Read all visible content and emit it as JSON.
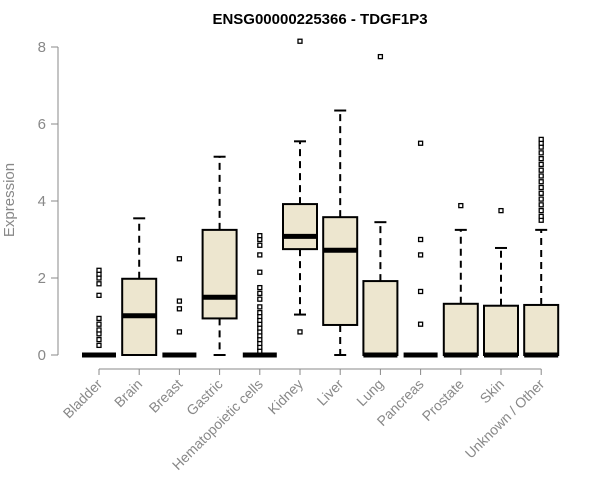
{
  "chart_data": {
    "type": "boxplot",
    "title": "ENSG00000225366 - TDGF1P3",
    "ylabel": "Expression",
    "xlabel": "",
    "ylim": [
      0,
      8
    ],
    "yticks": [
      0,
      2,
      4,
      6,
      8
    ],
    "box_fill": "#ede6cf",
    "categories": [
      "Bladder",
      "Brain",
      "Breast",
      "Gastric",
      "Hematopoietic cells",
      "Kidney",
      "Liver",
      "Lung",
      "Pancreas",
      "Prostate",
      "Skin",
      "Unknown / Other"
    ],
    "boxes": [
      {
        "q1": 0,
        "median": 0,
        "q3": 0,
        "whisker_low": 0,
        "whisker_high": 0,
        "outliers": [
          0.25,
          0.4,
          0.55,
          0.65,
          0.8,
          0.95,
          1.55,
          1.85,
          2.0,
          2.1,
          2.2
        ]
      },
      {
        "q1": 0,
        "median": 1.02,
        "q3": 1.98,
        "whisker_low": 0,
        "whisker_high": 3.55,
        "outliers": []
      },
      {
        "q1": 0,
        "median": 0,
        "q3": 0,
        "whisker_low": 0,
        "whisker_high": 0,
        "outliers": [
          0.6,
          1.2,
          1.4,
          2.5
        ]
      },
      {
        "q1": 0.95,
        "median": 1.5,
        "q3": 3.25,
        "whisker_low": 0,
        "whisker_high": 5.15,
        "outliers": []
      },
      {
        "q1": 0,
        "median": 0,
        "q3": 0,
        "whisker_low": 0,
        "whisker_high": 0,
        "outliers": [
          0.1,
          0.2,
          0.3,
          0.4,
          0.5,
          0.6,
          0.7,
          0.8,
          0.9,
          1.0,
          1.1,
          1.25,
          1.45,
          1.6,
          1.75,
          2.15,
          2.6,
          2.85,
          3.0,
          3.1
        ]
      },
      {
        "q1": 2.75,
        "median": 3.08,
        "q3": 3.92,
        "whisker_low": 1.05,
        "whisker_high": 5.55,
        "outliers": [
          0.6,
          8.15
        ]
      },
      {
        "q1": 0.78,
        "median": 2.72,
        "q3": 3.58,
        "whisker_low": 0,
        "whisker_high": 6.35,
        "outliers": []
      },
      {
        "q1": 0,
        "median": 0,
        "q3": 1.92,
        "whisker_low": 0,
        "whisker_high": 3.45,
        "outliers": [
          7.75
        ]
      },
      {
        "q1": 0,
        "median": 0,
        "q3": 0,
        "whisker_low": 0,
        "whisker_high": 0,
        "outliers": [
          0.8,
          1.65,
          2.6,
          3.0,
          5.5
        ]
      },
      {
        "q1": 0,
        "median": 0,
        "q3": 1.33,
        "whisker_low": 0,
        "whisker_high": 3.25,
        "outliers": [
          3.88
        ]
      },
      {
        "q1": 0,
        "median": 0,
        "q3": 1.28,
        "whisker_low": 0,
        "whisker_high": 2.78,
        "outliers": [
          3.75
        ]
      },
      {
        "q1": 0,
        "median": 0,
        "q3": 1.3,
        "whisker_low": 0,
        "whisker_high": 3.25,
        "outliers": [
          3.5,
          3.6,
          3.75,
          3.9,
          4.05,
          4.2,
          4.35,
          4.5,
          4.65,
          4.8,
          4.95,
          5.1,
          5.25,
          5.4,
          5.5,
          5.6
        ]
      }
    ]
  }
}
